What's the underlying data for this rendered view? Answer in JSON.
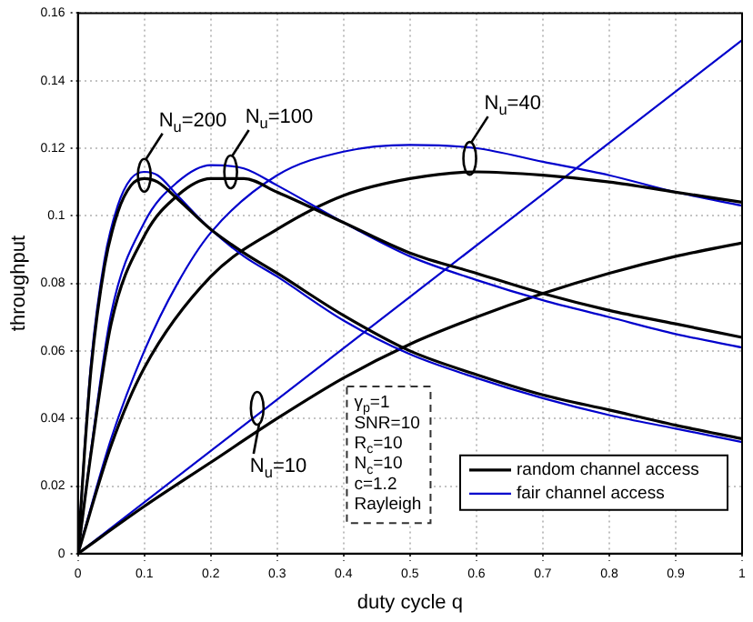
{
  "chart_data": {
    "type": "line",
    "xlabel": "duty cycle q",
    "ylabel": "throughput",
    "xlim": [
      0,
      1
    ],
    "ylim": [
      0,
      0.16
    ],
    "xticks": [
      0,
      0.1,
      0.2,
      0.3,
      0.4,
      0.5,
      0.6,
      0.7,
      0.8,
      0.9,
      1
    ],
    "yticks": [
      0,
      0.02,
      0.04,
      0.06,
      0.08,
      0.1,
      0.12,
      0.14,
      0.16
    ],
    "grid": true,
    "legend": "bottom right",
    "marker": "none",
    "line_style": "solid",
    "series": [
      {
        "name": "random channel access",
        "color": "#000000",
        "x": [
          0,
          0.01,
          0.02,
          0.04,
          0.06,
          0.08,
          0.1,
          0.12,
          0.15,
          0.2,
          0.25,
          0.3,
          0.4,
          0.5,
          0.6,
          0.7,
          0.8,
          0.9,
          1
        ],
        "values": [
          0,
          0.03,
          0.055,
          0.085,
          0.101,
          0.109,
          0.111,
          0.11,
          0.105,
          0.096,
          0.089,
          0.083,
          0.0705,
          0.06,
          0.053,
          0.047,
          0.0425,
          0.038,
          0.034
        ]
      },
      {
        "name": "fair channel access",
        "color": "#0000cc",
        "x": [
          0,
          0.01,
          0.02,
          0.04,
          0.06,
          0.08,
          0.1,
          0.12,
          0.15,
          0.2,
          0.25,
          0.3,
          0.4,
          0.5,
          0.6,
          0.7,
          0.8,
          0.9,
          1
        ],
        "values": [
          0,
          0.031,
          0.057,
          0.087,
          0.103,
          0.111,
          0.113,
          0.112,
          0.106,
          0.096,
          0.088,
          0.082,
          0.069,
          0.059,
          0.052,
          0.046,
          0.041,
          0.037,
          0.033
        ]
      },
      {
        "color": "#000000",
        "x": [
          0,
          0.02,
          0.05,
          0.1,
          0.15,
          0.2,
          0.25,
          0.3,
          0.4,
          0.5,
          0.6,
          0.7,
          0.8,
          0.9,
          1
        ],
        "values": [
          0,
          0.03,
          0.068,
          0.094,
          0.106,
          0.111,
          0.111,
          0.107,
          0.098,
          0.089,
          0.083,
          0.077,
          0.072,
          0.068,
          0.064
        ]
      },
      {
        "color": "#0000cc",
        "x": [
          0,
          0.02,
          0.05,
          0.1,
          0.15,
          0.2,
          0.25,
          0.3,
          0.4,
          0.5,
          0.6,
          0.7,
          0.8,
          0.9,
          1
        ],
        "values": [
          0,
          0.031,
          0.071,
          0.098,
          0.11,
          0.115,
          0.114,
          0.109,
          0.098,
          0.088,
          0.081,
          0.075,
          0.07,
          0.065,
          0.061
        ]
      },
      {
        "color": "#000000",
        "x": [
          0,
          0.05,
          0.1,
          0.2,
          0.3,
          0.4,
          0.5,
          0.6,
          0.7,
          0.8,
          0.9,
          1
        ],
        "values": [
          0,
          0.032,
          0.055,
          0.082,
          0.096,
          0.106,
          0.111,
          0.113,
          0.112,
          0.11,
          0.107,
          0.104
        ]
      },
      {
        "color": "#0000cc",
        "x": [
          0,
          0.05,
          0.1,
          0.15,
          0.2,
          0.3,
          0.4,
          0.5,
          0.6,
          0.7,
          0.8,
          0.9,
          1
        ],
        "values": [
          0,
          0.034,
          0.06,
          0.08,
          0.095,
          0.112,
          0.119,
          0.121,
          0.12,
          0.116,
          0.112,
          0.107,
          0.103
        ]
      },
      {
        "color": "#000000",
        "x": [
          0,
          0.1,
          0.2,
          0.3,
          0.4,
          0.5,
          0.6,
          0.7,
          0.8,
          0.9,
          1
        ],
        "values": [
          0,
          0.014,
          0.027,
          0.04,
          0.052,
          0.062,
          0.07,
          0.077,
          0.083,
          0.088,
          0.092
        ]
      },
      {
        "color": "#0000cc",
        "x": [
          0,
          1
        ],
        "values": [
          0,
          0.152
        ]
      }
    ],
    "annotations": [
      {
        "text": "N$_{u}$=200",
        "x": 0.1,
        "y": 0.112
      },
      {
        "text": "N$_{u}$=100",
        "x": 0.23,
        "y": 0.113
      },
      {
        "text": "N$_{u}$=40",
        "x": 0.59,
        "y": 0.117
      },
      {
        "text": "N$_{u}$=10",
        "x": 0.27,
        "y": 0.043
      },
      "γ$_{p}$=1",
      "SNR=10",
      "R$_{c}$=10",
      "N$_{c}$=10",
      "c=1.2",
      "Rayleigh"
    ]
  }
}
